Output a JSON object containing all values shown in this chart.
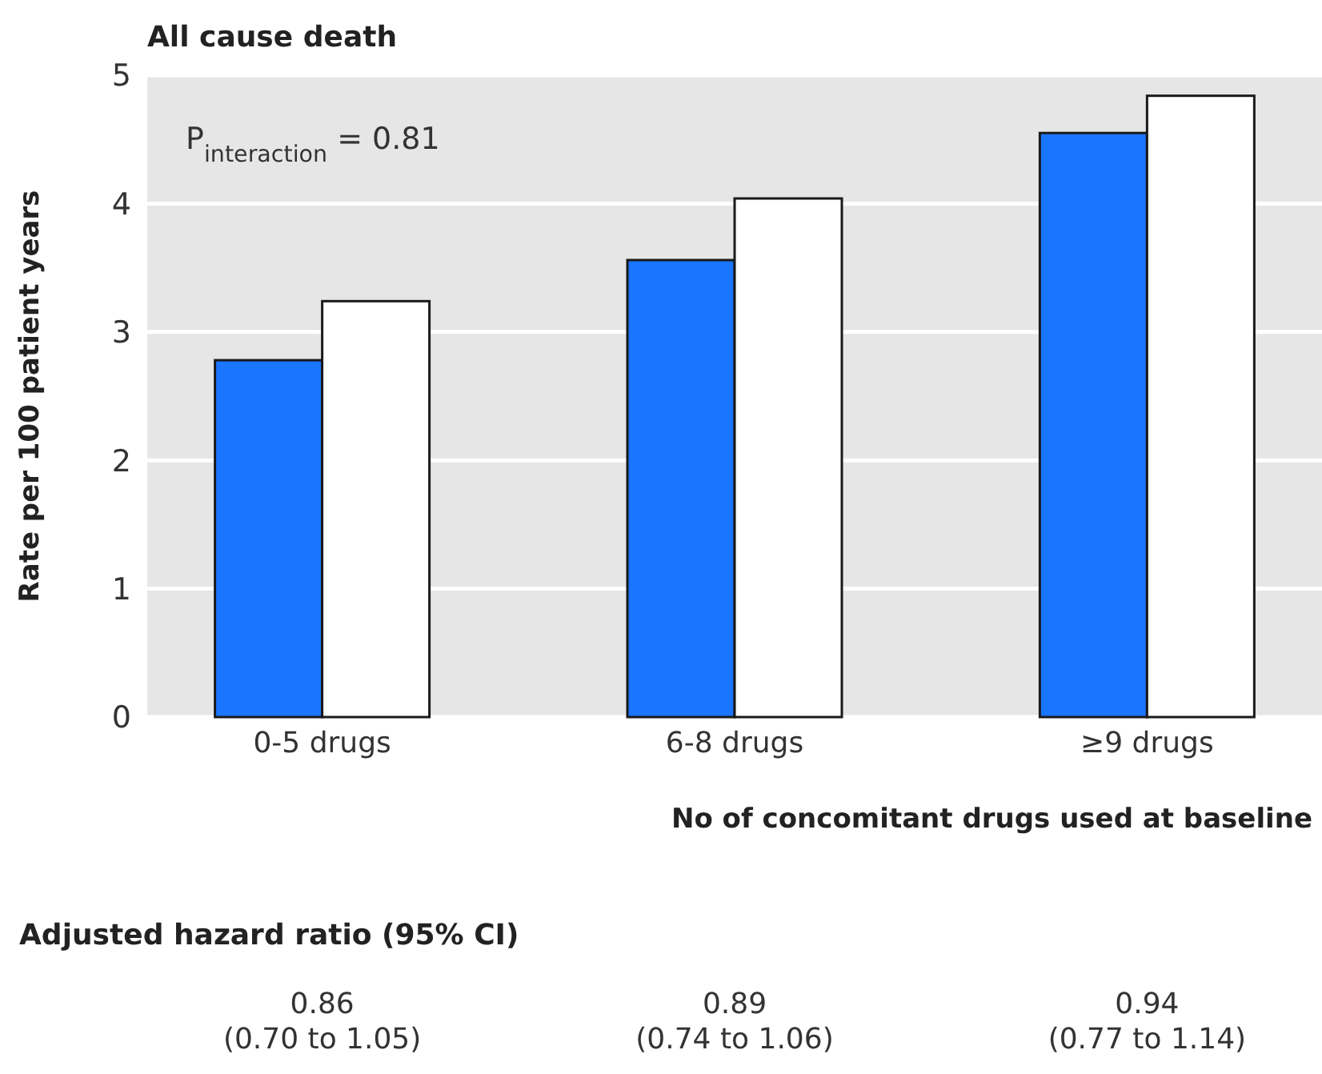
{
  "chart_data": {
    "type": "bar",
    "title": "All cause death",
    "xlabel": "No of concomitant drugs used at baseline",
    "ylabel": "Rate per 100 patient years",
    "categories": [
      "0-5 drugs",
      "6-8 drugs",
      "≥9 drugs"
    ],
    "series": [
      {
        "color": "#1a75ff",
        "values": [
          2.78,
          3.56,
          4.55
        ]
      },
      {
        "color": "#ffffff",
        "values": [
          3.24,
          4.04,
          4.84
        ]
      }
    ],
    "ylim": [
      0,
      5
    ],
    "yticks": [
      0,
      1,
      2,
      3,
      4,
      5
    ],
    "grid": "y",
    "annotations": [
      "P$_{interaction}$ = 0.81",
      "Adjusted hazard ratio (95% CI)",
      "0.86\n(0.70 to 1.05)",
      "0.89\n(0.74 to 1.06)",
      "0.94\n(0.77 to 1.14)"
    ]
  }
}
